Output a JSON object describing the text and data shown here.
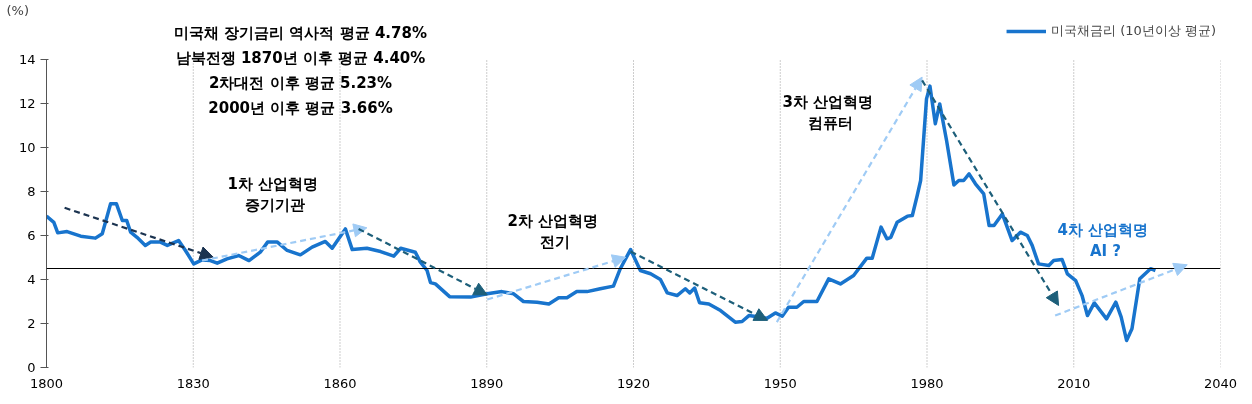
{
  "chart_data": {
    "type": "line",
    "ylabel": "(%)",
    "annotations": [
      "미국채 장기금리 역사적 평균 4.78%",
      "남북전쟁 1870년 이후 평균 4.40%",
      "2차대전 이후 평균 5.23%",
      "2000년 이후 평균 3.66%",
      "1차  산업혁명\n증기기관",
      "2차  산업혁명\n전기",
      "3차  산업혁명\n컴퓨터",
      "4차  산업혁명\nAI ?"
    ],
    "series": [
      {
        "name": "미국채금리 (10년이상 평균)",
        "color": "#1874cd",
        "x": [
          1800,
          1801.5,
          1802.3,
          1804.2,
          1807,
          1810,
          1811.4,
          1813.1,
          1814.3,
          1815.5,
          1816.4,
          1817.2,
          1818.5,
          1820.2,
          1821.3,
          1823.3,
          1824.7,
          1827,
          1828.4,
          1830.1,
          1831.8,
          1833.5,
          1834.9,
          1836.9,
          1839.3,
          1841.4,
          1843.7,
          1845.2,
          1847.2,
          1849.2,
          1851.9,
          1854.3,
          1857,
          1858.4,
          1861.1,
          1862.5,
          1865.5,
          1868.3,
          1871,
          1872.4,
          1875.4,
          1876.4,
          1877.8,
          1878.5,
          1879.5,
          1882.4,
          1886.7,
          1890.1,
          1893.1,
          1895.5,
          1897.5,
          1900.3,
          1902.7,
          1904.7,
          1906.4,
          1908.4,
          1910.5,
          1913.2,
          1915.9,
          1917.3,
          1919.4,
          1921.4,
          1923.5,
          1925.5,
          1926.9,
          1928.9,
          1930.6,
          1931.5,
          1932.5,
          1933.5,
          1935.4,
          1937.8,
          1940.8,
          1942.2,
          1943.6,
          1947.3,
          1949,
          1950.4,
          1951.7,
          1953.4,
          1954.8,
          1957.5,
          1959.9,
          1962.3,
          1965,
          1967.7,
          1968.8,
          1970.6,
          1971.8,
          1972.6,
          1973.9,
          1976,
          1977,
          1978,
          1978.7,
          1979.9,
          1980.6,
          1981.7,
          1982.6,
          1984,
          1985.5,
          1986.5,
          1987.5,
          1988.6,
          1989.9,
          1991.6,
          1992.7,
          1993.7,
          1995.4,
          1997.4,
          1999.1,
          2000.5,
          2001.5,
          2002.8,
          2004.9,
          2005.9,
          2007.6,
          2008.7,
          2010.4,
          2011.7,
          2012.8,
          2014.2,
          2016.7,
          2018.6,
          2019.7,
          2020.8,
          2021.9,
          2023.5,
          2025.7,
          2026.7
        ],
        "values": [
          6.88,
          6.6,
          6.12,
          6.18,
          5.97,
          5.88,
          6.08,
          7.44,
          7.44,
          6.68,
          6.68,
          6.15,
          5.92,
          5.55,
          5.7,
          5.7,
          5.55,
          5.77,
          5.32,
          4.71,
          4.89,
          4.86,
          4.74,
          4.94,
          5.09,
          4.86,
          5.24,
          5.7,
          5.7,
          5.32,
          5.12,
          5.47,
          5.73,
          5.42,
          6.3,
          5.36,
          5.42,
          5.27,
          5.06,
          5.42,
          5.24,
          4.8,
          4.41,
          3.86,
          3.8,
          3.22,
          3.2,
          3.35,
          3.45,
          3.35,
          3.0,
          2.97,
          2.89,
          3.17,
          3.17,
          3.45,
          3.45,
          3.58,
          3.7,
          4.49,
          5.36,
          4.41,
          4.26,
          4.0,
          3.39,
          3.27,
          3.58,
          3.39,
          3.61,
          2.94,
          2.89,
          2.59,
          2.06,
          2.09,
          2.36,
          2.24,
          2.48,
          2.33,
          2.74,
          2.74,
          3.0,
          3.0,
          4.03,
          3.8,
          4.18,
          4.97,
          4.97,
          6.38,
          5.85,
          5.92,
          6.6,
          6.88,
          6.91,
          7.82,
          8.5,
          12.21,
          12.79,
          11.08,
          11.98,
          10.32,
          8.3,
          8.5,
          8.5,
          8.8,
          8.35,
          7.89,
          6.45,
          6.45,
          6.98,
          5.77,
          6.15,
          6.0,
          5.55,
          4.71,
          4.64,
          4.86,
          4.91,
          4.26,
          3.95,
          3.27,
          2.36,
          2.94,
          2.21,
          2.97,
          2.29,
          1.23,
          1.76,
          4.03,
          4.49,
          4.41
        ]
      }
    ],
    "xlim": [
      1800,
      2040
    ],
    "xticks": [
      1800,
      1830,
      1860,
      1890,
      1920,
      1950,
      1980,
      2010,
      2040
    ],
    "ylim": [
      0,
      14
    ],
    "yticks": [
      0,
      2,
      4,
      6,
      8,
      10,
      12,
      14
    ],
    "grid": "x",
    "legend": "top right",
    "ref_lines": [
      {
        "axis": "y",
        "value": 4.5,
        "color": "#000000"
      }
    ]
  }
}
